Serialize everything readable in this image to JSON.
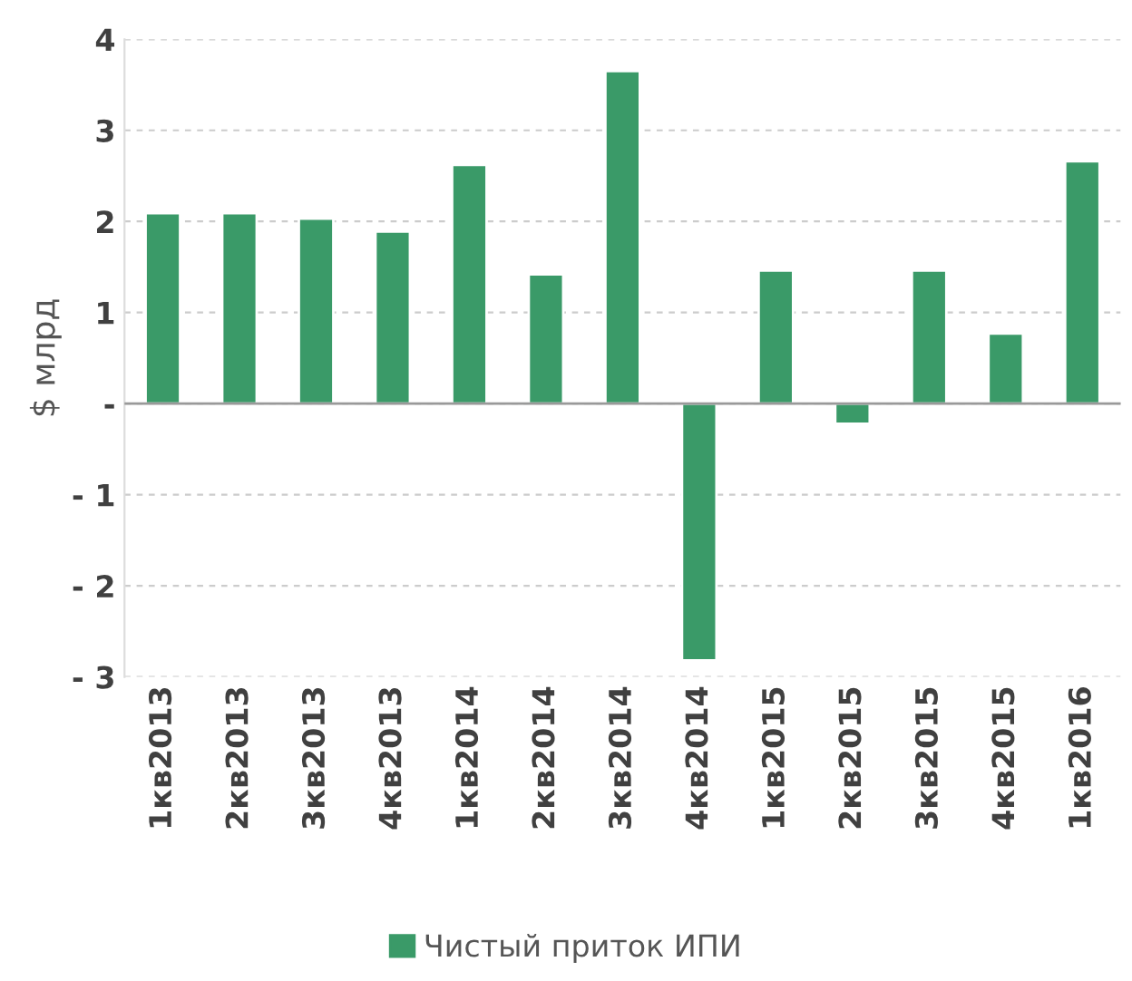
{
  "chart_data": {
    "type": "bar",
    "ylabel": "$ млрд",
    "categories": [
      "1кв2013",
      "2кв2013",
      "3кв2013",
      "4кв2013",
      "1кв2014",
      "2кв2014",
      "3кв2014",
      "4кв2014",
      "1кв2015",
      "2кв2015",
      "3кв2015",
      "4кв2015",
      "1кв2016"
    ],
    "series": [
      {
        "name": "Чистый приток ИПИ",
        "color": "#3a9a68",
        "values": [
          2.09,
          2.09,
          2.03,
          1.89,
          2.62,
          1.42,
          3.65,
          -2.82,
          1.46,
          -0.22,
          1.46,
          0.77,
          2.66
        ]
      }
    ],
    "ylim": [
      -3,
      4
    ],
    "yticks": [
      {
        "value": -3,
        "label": "- 3"
      },
      {
        "value": -2,
        "label": "- 2"
      },
      {
        "value": -1,
        "label": "- 1"
      },
      {
        "value": 0,
        "label": "-"
      },
      1,
      2,
      3,
      4
    ],
    "grid": "y",
    "legend": "bottom"
  }
}
